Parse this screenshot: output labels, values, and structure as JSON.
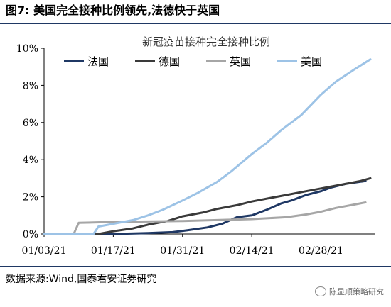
{
  "figure": {
    "title": "图7:  美国完全接种比例领先,法德快于英国",
    "source": "数据来源:Wind,国泰君安证券研究",
    "watermark": "陈显顺策略研究"
  },
  "colors": {
    "rule": "#1f3864",
    "France": "#1f3864",
    "Germany": "#3a3a3a",
    "UK": "#a6a6a6",
    "US": "#9dc3e6"
  },
  "chart_data": {
    "type": "line",
    "title": "新冠疫苗接种完全接种比例",
    "xlabel": "",
    "ylabel": "",
    "ylim": [
      0,
      10
    ],
    "yticks": [
      0,
      2,
      4,
      6,
      8,
      10
    ],
    "ytick_labels": [
      "0%",
      "2%",
      "4%",
      "6%",
      "8%",
      "10%"
    ],
    "xlim": [
      "2021-01-03",
      "2021-03-11"
    ],
    "xticks": [
      "2021-01-03",
      "2021-01-17",
      "2021-01-31",
      "2021-02-14",
      "2021-02-28"
    ],
    "xtick_labels": [
      "01/03/21",
      "01/17/21",
      "01/31/21",
      "02/14/21",
      "02/28/21"
    ],
    "grid": false,
    "legend_position": "top",
    "series": [
      {
        "name": "法国",
        "color_key": "France",
        "x": [
          "2021-01-03",
          "2021-01-17",
          "2021-01-24",
          "2021-01-29",
          "2021-02-01",
          "2021-02-05",
          "2021-02-08",
          "2021-02-11",
          "2021-02-14",
          "2021-02-17",
          "2021-02-20",
          "2021-02-22",
          "2021-02-25",
          "2021-02-28",
          "2021-03-02",
          "2021-03-05",
          "2021-03-09"
        ],
        "values": [
          0,
          0,
          0.05,
          0.1,
          0.2,
          0.35,
          0.55,
          0.9,
          1.0,
          1.3,
          1.65,
          1.8,
          2.1,
          2.3,
          2.5,
          2.7,
          2.85
        ]
      },
      {
        "name": "德国",
        "color_key": "Germany",
        "x": [
          "2021-01-03",
          "2021-01-14",
          "2021-01-17",
          "2021-01-21",
          "2021-01-24",
          "2021-01-28",
          "2021-01-31",
          "2021-02-04",
          "2021-02-07",
          "2021-02-11",
          "2021-02-14",
          "2021-02-18",
          "2021-02-21",
          "2021-02-25",
          "2021-02-28",
          "2021-03-04",
          "2021-03-08",
          "2021-03-10"
        ],
        "values": [
          0,
          0,
          0.15,
          0.3,
          0.5,
          0.7,
          0.95,
          1.15,
          1.35,
          1.55,
          1.75,
          1.95,
          2.1,
          2.3,
          2.45,
          2.65,
          2.85,
          3.0
        ]
      },
      {
        "name": "英国",
        "color_key": "UK",
        "x": [
          "2021-01-03",
          "2021-01-09",
          "2021-01-10",
          "2021-01-17",
          "2021-01-31",
          "2021-02-14",
          "2021-02-21",
          "2021-02-25",
          "2021-02-28",
          "2021-03-03",
          "2021-03-07",
          "2021-03-09"
        ],
        "values": [
          0,
          0,
          0.6,
          0.65,
          0.7,
          0.8,
          0.9,
          1.05,
          1.2,
          1.4,
          1.6,
          1.7
        ]
      },
      {
        "name": "美国",
        "color_key": "US",
        "x": [
          "2021-01-03",
          "2021-01-13",
          "2021-01-14",
          "2021-01-17",
          "2021-01-21",
          "2021-01-24",
          "2021-01-27",
          "2021-01-31",
          "2021-02-03",
          "2021-02-07",
          "2021-02-10",
          "2021-02-14",
          "2021-02-17",
          "2021-02-20",
          "2021-02-24",
          "2021-02-28",
          "2021-03-03",
          "2021-03-07",
          "2021-03-10"
        ],
        "values": [
          0,
          0,
          0.4,
          0.55,
          0.75,
          1.0,
          1.3,
          1.8,
          2.2,
          2.8,
          3.4,
          4.3,
          4.9,
          5.6,
          6.4,
          7.5,
          8.2,
          8.9,
          9.4
        ]
      }
    ]
  }
}
